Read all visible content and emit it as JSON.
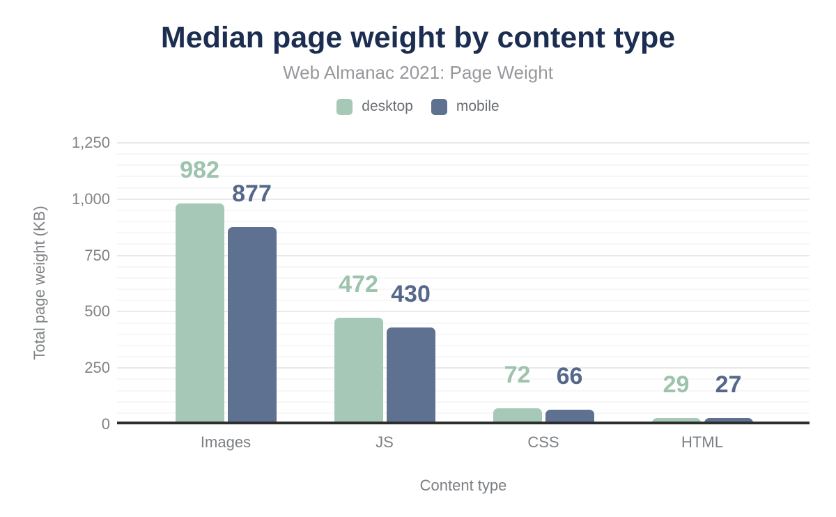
{
  "chart_data": {
    "type": "bar",
    "title": "Median page weight by content type",
    "subtitle": "Web Almanac 2021: Page Weight",
    "xlabel": "Content type",
    "ylabel": "Total page weight (KB)",
    "categories": [
      "Images",
      "JS",
      "CSS",
      "HTML"
    ],
    "series": [
      {
        "name": "desktop",
        "color": "#a5c9b6",
        "label_color": "#9dc3ad",
        "values": [
          982,
          472,
          72,
          29
        ]
      },
      {
        "name": "mobile",
        "color": "#5e7190",
        "label_color": "#55688b",
        "values": [
          877,
          430,
          66,
          27
        ]
      }
    ],
    "ylim": [
      0,
      1250
    ],
    "yticks": [
      0,
      250,
      500,
      750,
      1000,
      1250
    ],
    "ytick_labels": [
      "0",
      "250",
      "500",
      "750",
      "1,000",
      "1,250"
    ],
    "minor_grid_step": 50,
    "grid": "on",
    "legend_position": "top",
    "colors": {
      "title_text": "#1b2d50",
      "subtitle_text": "#96989b",
      "axis_text": "#7f8285",
      "major_grid": "#e9e9e9",
      "minor_grid": "#f7f7f7",
      "axis_line": "#2d2d2d",
      "background": "#ffffff"
    }
  }
}
